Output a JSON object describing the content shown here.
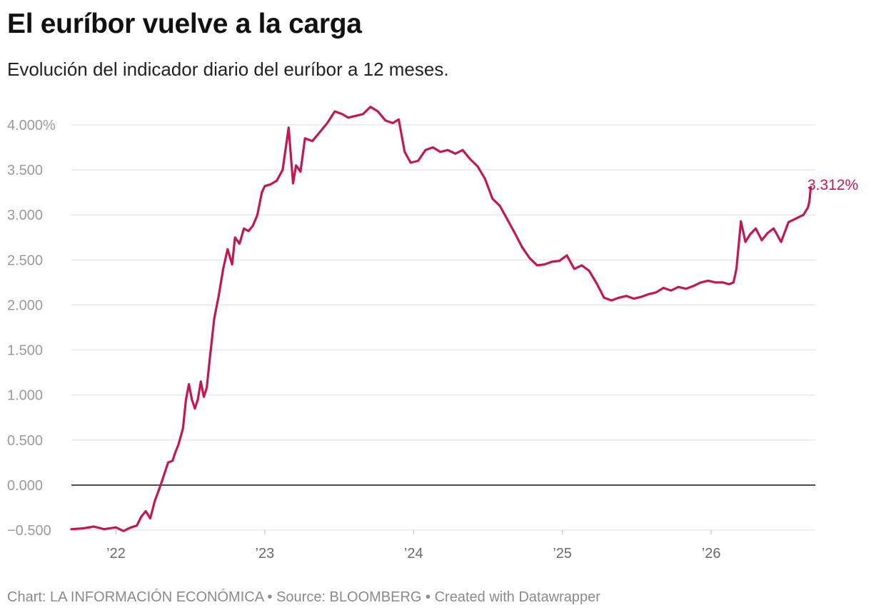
{
  "title": "El euríbor vuelve a la carga",
  "subtitle": "Evolución del indicador diario del euríbor a 12 meses.",
  "footer": {
    "chart_credit": "Chart: LA INFORMACIÓN ECONÓMICA",
    "separator": " • ",
    "source": "Source: BLOOMBERG",
    "created": "Created with Datawrapper"
  },
  "colors": {
    "line": "#c2184f",
    "grid": "#e3e3e3",
    "zero_line": "#222222",
    "tick_text": "#9a9a9a"
  },
  "chart_data": {
    "type": "line",
    "title": "El euríbor vuelve a la carga",
    "subtitle": "Evolución del indicador diario del euríbor a 12 meses.",
    "xlabel": "",
    "ylabel": "",
    "ylim": [
      -0.5,
      4.0
    ],
    "xlim": [
      2021.7,
      2026.7
    ],
    "grid": true,
    "y_ticks": [
      -0.5,
      0,
      0.5,
      1,
      1.5,
      2,
      2.5,
      3,
      3.5,
      4
    ],
    "y_tick_labels": [
      "−0.500",
      "0.000",
      "0.500",
      "1.000",
      "1.500",
      "2.000",
      "2.500",
      "3.000",
      "3.500",
      "4.000%"
    ],
    "x_ticks": [
      2022,
      2023,
      2024,
      2025,
      2026
    ],
    "x_tick_labels": [
      "’22",
      "’23",
      "’24",
      "’25",
      "’26"
    ],
    "end_label": "3.312%",
    "series": [
      {
        "x": [
          2021.7,
          2021.78,
          2021.85,
          2021.92,
          2022.0,
          2022.05,
          2022.1,
          2022.14,
          2022.17,
          2022.2,
          2022.23,
          2022.26,
          2022.28,
          2022.3,
          2022.33,
          2022.35,
          2022.38,
          2022.4,
          2022.42,
          2022.45,
          2022.47,
          2022.49,
          2022.51,
          2022.53,
          2022.55,
          2022.57,
          2022.59,
          2022.61,
          2022.63,
          2022.66,
          2022.69,
          2022.72,
          2022.75,
          2022.78,
          2022.8,
          2022.83,
          2022.86,
          2022.89,
          2022.92,
          2022.95,
          2022.98,
          2023.0,
          2023.04,
          2023.08,
          2023.12,
          2023.16,
          2023.19,
          2023.21,
          2023.24,
          2023.27,
          2023.32,
          2023.37,
          2023.42,
          2023.47,
          2023.52,
          2023.56,
          2023.61,
          2023.66,
          2023.71,
          2023.76,
          2023.81,
          2023.86,
          2023.9,
          2023.94,
          2023.98,
          2024.03,
          2024.08,
          2024.13,
          2024.18,
          2024.23,
          2024.28,
          2024.33,
          2024.38,
          2024.43,
          2024.48,
          2024.53,
          2024.58,
          2024.63,
          2024.68,
          2024.73,
          2024.78,
          2024.83,
          2024.88,
          2024.93,
          2024.98,
          2025.03,
          2025.08,
          2025.13,
          2025.18,
          2025.23,
          2025.28,
          2025.33,
          2025.38,
          2025.43,
          2025.48,
          2025.53,
          2025.58,
          2025.63,
          2025.68,
          2025.73,
          2025.78,
          2025.83,
          2025.88,
          2025.93,
          2025.98,
          2026.03,
          2026.08,
          2026.12,
          2026.15,
          2026.17,
          2026.2,
          2026.23,
          2026.26,
          2026.3,
          2026.34,
          2026.38,
          2026.42,
          2026.47,
          2026.52,
          2026.57,
          2026.62,
          2026.65,
          2026.66,
          2026.67
        ],
        "y": [
          -0.49,
          -0.48,
          -0.46,
          -0.49,
          -0.47,
          -0.51,
          -0.47,
          -0.45,
          -0.35,
          -0.29,
          -0.37,
          -0.18,
          -0.09,
          0.0,
          0.15,
          0.25,
          0.27,
          0.37,
          0.45,
          0.63,
          0.95,
          1.12,
          0.95,
          0.85,
          0.95,
          1.15,
          0.98,
          1.08,
          1.4,
          1.85,
          2.1,
          2.4,
          2.62,
          2.45,
          2.75,
          2.68,
          2.85,
          2.82,
          2.88,
          3.0,
          3.25,
          3.32,
          3.34,
          3.38,
          3.5,
          3.97,
          3.35,
          3.55,
          3.48,
          3.85,
          3.82,
          3.92,
          4.02,
          4.15,
          4.12,
          4.08,
          4.1,
          4.12,
          4.2,
          4.15,
          4.05,
          4.02,
          4.06,
          3.7,
          3.58,
          3.6,
          3.72,
          3.75,
          3.7,
          3.72,
          3.68,
          3.72,
          3.62,
          3.54,
          3.4,
          3.18,
          3.1,
          2.95,
          2.8,
          2.64,
          2.52,
          2.44,
          2.45,
          2.48,
          2.49,
          2.55,
          2.4,
          2.44,
          2.38,
          2.24,
          2.08,
          2.05,
          2.08,
          2.1,
          2.07,
          2.09,
          2.12,
          2.14,
          2.19,
          2.16,
          2.2,
          2.18,
          2.21,
          2.25,
          2.27,
          2.25,
          2.25,
          2.23,
          2.25,
          2.4,
          2.93,
          2.7,
          2.78,
          2.85,
          2.72,
          2.8,
          2.85,
          2.7,
          2.92,
          2.96,
          3.0,
          3.08,
          3.15,
          3.312
        ]
      }
    ]
  }
}
